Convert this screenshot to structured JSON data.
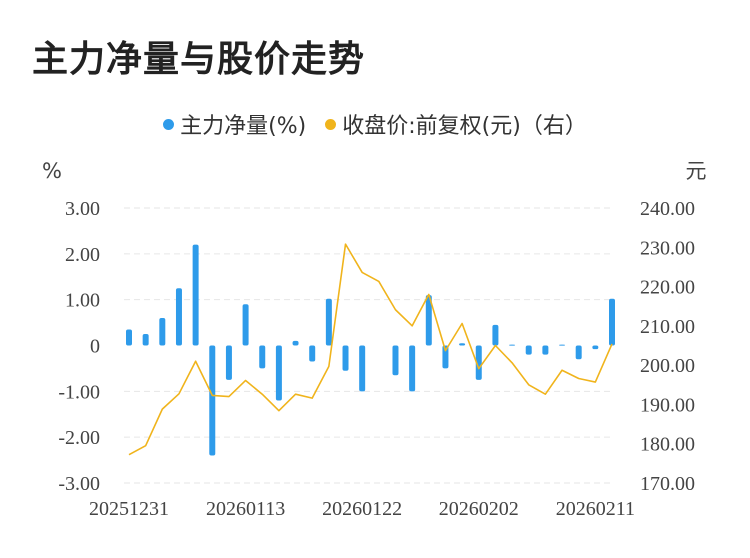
{
  "page": {
    "title": "主力净量与股价走势"
  },
  "colors": {
    "bar": "#2e9bea",
    "line": "#f0b41c",
    "grid": "#e6e6e6",
    "text": "#444444"
  },
  "legend": {
    "bar_label": "主力净量(%)",
    "line_label": "收盘价:前复权(元)（右）"
  },
  "chart_data": {
    "type": "bar",
    "title": "主力净量与股价走势",
    "left_unit": "%",
    "right_unit": "元",
    "left_ticks": [
      "3.00",
      "2.00",
      "1.00",
      "0",
      "-1.00",
      "-2.00",
      "-3.00"
    ],
    "right_ticks": [
      "240.00",
      "230.00",
      "220.00",
      "210.00",
      "200.00",
      "190.00",
      "180.00",
      "170.00"
    ],
    "x_tick_labels": [
      "20251231",
      "20260113",
      "20260122",
      "20260202",
      "20260211"
    ],
    "ylim_left": [
      -3,
      3
    ],
    "ylim_right": [
      170,
      240
    ],
    "grid": true,
    "legend_position": "top",
    "series": [
      {
        "name": "主力净量(%)",
        "type": "bar",
        "axis": "left",
        "values": [
          0.35,
          0.25,
          0.6,
          1.25,
          2.2,
          -2.4,
          -0.75,
          0.9,
          -0.5,
          -1.2,
          0.1,
          -0.35,
          1.02,
          -0.55,
          -1.0,
          0.0,
          -0.65,
          -1.0,
          1.1,
          -0.5,
          0.05,
          -0.75,
          0.45,
          0.02,
          -0.2,
          -0.2,
          0.02,
          -0.3,
          -0.08,
          1.02
        ]
      },
      {
        "name": "收盘价:前复权(元)（右）",
        "type": "line",
        "axis": "right",
        "values": [
          177.2,
          179.5,
          188.8,
          192.7,
          201.0,
          192.3,
          192.0,
          196.1,
          192.6,
          188.4,
          192.6,
          191.6,
          199.7,
          230.8,
          223.6,
          221.3,
          214.1,
          210.0,
          218.0,
          203.7,
          210.6,
          199.1,
          205.0,
          200.6,
          195.0,
          192.6,
          198.7,
          196.6,
          195.7,
          205.4
        ]
      }
    ]
  }
}
